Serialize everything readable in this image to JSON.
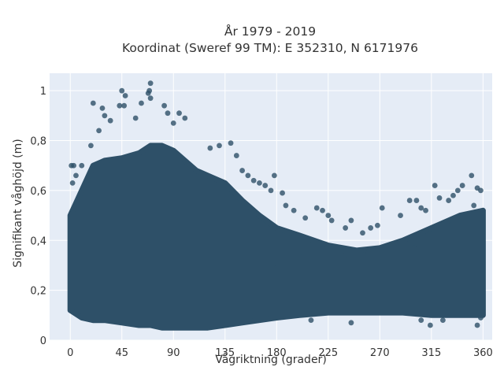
{
  "chart_data": {
    "type": "scatter",
    "title": "År 1979 - 2019",
    "subtitle": "Koordinat (Sweref 99 TM): E 352310, N 6171976",
    "xlabel": "Vågriktning (grader)",
    "ylabel": "Signifikant våghöjd (m)",
    "xlim": [
      -18,
      368
    ],
    "ylim": [
      0,
      1.07
    ],
    "x_ticks": [
      0,
      45,
      90,
      135,
      180,
      225,
      270,
      315,
      360
    ],
    "y_ticks": [
      0,
      0.2,
      0.4,
      0.6,
      0.8,
      1
    ],
    "x_tick_labels": [
      "0",
      "45",
      "90",
      "135",
      "180",
      "225",
      "270",
      "315",
      "360"
    ],
    "y_tick_labels": [
      "0",
      "0,2",
      "0,4",
      "0,6",
      "0,8",
      "1"
    ],
    "grid": true,
    "marker_color": "#2e5068",
    "background_color": "#e5ecf6",
    "envelope": {
      "x": [
        0,
        10,
        20,
        30,
        45,
        60,
        70,
        80,
        90,
        100,
        110,
        120,
        135,
        150,
        165,
        180,
        200,
        225,
        250,
        270,
        290,
        315,
        340,
        360
      ],
      "y_min": [
        0.12,
        0.09,
        0.08,
        0.08,
        0.07,
        0.06,
        0.06,
        0.05,
        0.05,
        0.05,
        0.05,
        0.05,
        0.06,
        0.07,
        0.08,
        0.09,
        0.1,
        0.11,
        0.11,
        0.11,
        0.11,
        0.1,
        0.1,
        0.1
      ],
      "y_max": [
        0.5,
        0.6,
        0.7,
        0.72,
        0.73,
        0.75,
        0.78,
        0.78,
        0.76,
        0.72,
        0.68,
        0.66,
        0.63,
        0.56,
        0.5,
        0.45,
        0.42,
        0.38,
        0.36,
        0.37,
        0.4,
        0.45,
        0.5,
        0.52
      ]
    },
    "points": [
      [
        70,
        1.03
      ],
      [
        69,
        1.0
      ],
      [
        68,
        0.99
      ],
      [
        45,
        1.0
      ],
      [
        70,
        0.97
      ],
      [
        48,
        0.98
      ],
      [
        43,
        0.94
      ],
      [
        47,
        0.94
      ],
      [
        62,
        0.95
      ],
      [
        82,
        0.94
      ],
      [
        20,
        0.95
      ],
      [
        28,
        0.93
      ],
      [
        30,
        0.9
      ],
      [
        85,
        0.91
      ],
      [
        95,
        0.91
      ],
      [
        100,
        0.89
      ],
      [
        90,
        0.87
      ],
      [
        35,
        0.88
      ],
      [
        57,
        0.89
      ],
      [
        10,
        0.7
      ],
      [
        3,
        0.7
      ],
      [
        1,
        0.7
      ],
      [
        5,
        0.66
      ],
      [
        2,
        0.63
      ],
      [
        18,
        0.78
      ],
      [
        25,
        0.84
      ],
      [
        122,
        0.77
      ],
      [
        130,
        0.78
      ],
      [
        140,
        0.79
      ],
      [
        145,
        0.74
      ],
      [
        150,
        0.68
      ],
      [
        155,
        0.66
      ],
      [
        160,
        0.64
      ],
      [
        165,
        0.63
      ],
      [
        170,
        0.62
      ],
      [
        178,
        0.66
      ],
      [
        175,
        0.6
      ],
      [
        185,
        0.59
      ],
      [
        188,
        0.54
      ],
      [
        195,
        0.52
      ],
      [
        205,
        0.49
      ],
      [
        215,
        0.53
      ],
      [
        220,
        0.52
      ],
      [
        225,
        0.5
      ],
      [
        228,
        0.48
      ],
      [
        240,
        0.45
      ],
      [
        245,
        0.48
      ],
      [
        255,
        0.43
      ],
      [
        262,
        0.45
      ],
      [
        268,
        0.46
      ],
      [
        272,
        0.53
      ],
      [
        288,
        0.5
      ],
      [
        296,
        0.56
      ],
      [
        302,
        0.56
      ],
      [
        306,
        0.53
      ],
      [
        310,
        0.52
      ],
      [
        318,
        0.62
      ],
      [
        322,
        0.57
      ],
      [
        330,
        0.56
      ],
      [
        334,
        0.58
      ],
      [
        338,
        0.6
      ],
      [
        342,
        0.62
      ],
      [
        350,
        0.66
      ],
      [
        355,
        0.61
      ],
      [
        358,
        0.6
      ],
      [
        352,
        0.54
      ],
      [
        180,
        0.29
      ],
      [
        200,
        0.35
      ],
      [
        240,
        0.34
      ],
      [
        260,
        0.35
      ],
      [
        300,
        0.37
      ],
      [
        314,
        0.06
      ],
      [
        306,
        0.08
      ],
      [
        325,
        0.08
      ],
      [
        355,
        0.06
      ],
      [
        358,
        0.09
      ],
      [
        245,
        0.07
      ],
      [
        210,
        0.08
      ]
    ]
  }
}
